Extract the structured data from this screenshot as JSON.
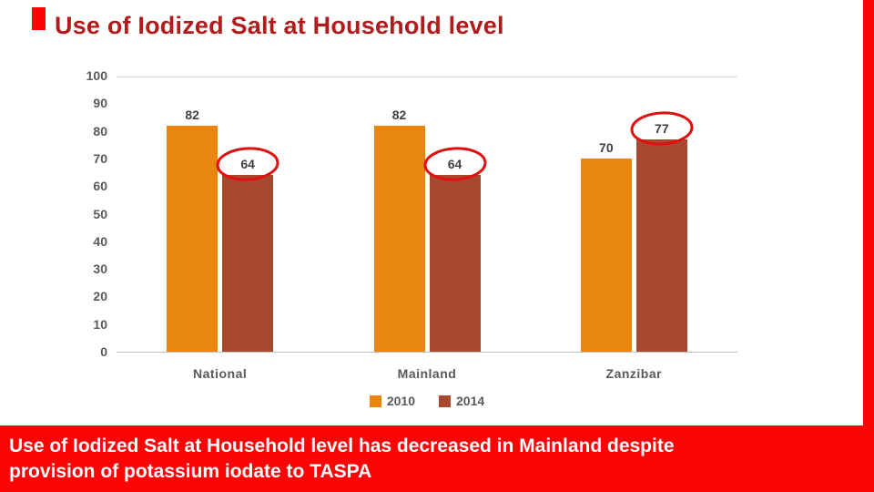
{
  "slide": {
    "title": "Use of Iodized Salt at Household level",
    "title_color": "#B21B1B",
    "accent_color": "#FA0406",
    "background": "#FFFFFF"
  },
  "banner": {
    "line1": "Use of Iodized  Salt at Household level has decreased in Mainland despite",
    "line2": "provision of potassium iodate to TASPA",
    "bg_color": "#FA0406",
    "text_color": "#FFFFFF"
  },
  "chart_data": {
    "type": "bar",
    "title": "",
    "categories": [
      "National",
      "Mainland",
      "Zanzibar"
    ],
    "series": [
      {
        "name": "2010",
        "color": "#E8860D",
        "values": [
          82,
          82,
          70
        ]
      },
      {
        "name": "2014",
        "color": "#A6492F",
        "values": [
          64,
          64,
          77
        ]
      }
    ],
    "ylim": [
      0,
      100
    ],
    "ytick_step": 10,
    "grid": false,
    "legend_position": "bottom",
    "axis_text_color": "#595959",
    "label_text_color": "#3F3F3F",
    "annotation_color": "#E01010",
    "circled_labels": [
      {
        "category": "National",
        "series": "2014",
        "value": 64
      },
      {
        "category": "Mainland",
        "series": "2014",
        "value": 64
      },
      {
        "category": "Zanzibar",
        "series": "2014",
        "value": 77
      }
    ]
  }
}
